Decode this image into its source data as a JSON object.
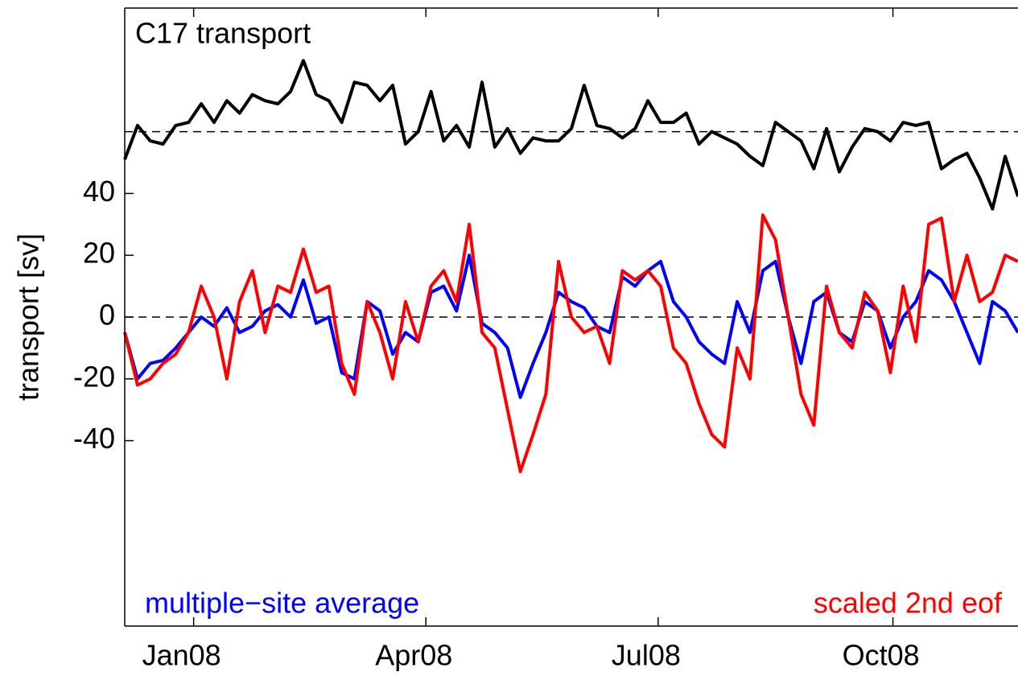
{
  "chart_data": {
    "type": "line",
    "title": "C17 transport",
    "y_label": "transport [sv]",
    "x": [
      -27,
      -22,
      -17,
      -12,
      -7,
      -2,
      3,
      8,
      13,
      18,
      23,
      28,
      33,
      38,
      43,
      48,
      53,
      58,
      63,
      68,
      73,
      78,
      83,
      88,
      93,
      98,
      103,
      108,
      113,
      118,
      123,
      128,
      133,
      138,
      143,
      148,
      153,
      158,
      163,
      168,
      173,
      178,
      183,
      188,
      193,
      198,
      203,
      208,
      213,
      218,
      223,
      228,
      233,
      238,
      243,
      248,
      253,
      258,
      263,
      268,
      273,
      278,
      283,
      288,
      293,
      298,
      303,
      308,
      313,
      318,
      323
    ],
    "xlim": [
      -27,
      323
    ],
    "xticks": [
      {
        "value": 0,
        "label": "Jan08"
      },
      {
        "value": 91,
        "label": "Apr08"
      },
      {
        "value": 182,
        "label": "Jul08"
      },
      {
        "value": 274,
        "label": "Oct08"
      }
    ],
    "ylim": [
      -100,
      100
    ],
    "yticks": [
      -40,
      -20,
      0,
      20,
      40
    ],
    "reference_lines": [
      0,
      60
    ],
    "series": [
      {
        "name": "C17 transport",
        "color": "#000000",
        "values": [
          51,
          62,
          57,
          56,
          62,
          63,
          69,
          63,
          70,
          66,
          72,
          70,
          69,
          73,
          83,
          72,
          70,
          63,
          76,
          75,
          70,
          75,
          56,
          60,
          73,
          57,
          62,
          55,
          76,
          55,
          61,
          53,
          58,
          57,
          57,
          61,
          75,
          62,
          61,
          58,
          61,
          70,
          63,
          63,
          66,
          56,
          60,
          58,
          56,
          52,
          49,
          63,
          60,
          57,
          48,
          61,
          47,
          55,
          61,
          60,
          57,
          63,
          62,
          63,
          48,
          51,
          53,
          45,
          35,
          52,
          39
        ]
      },
      {
        "name": "multiple−site average",
        "color": "#0000ff",
        "values": [
          -5,
          -20,
          -15,
          -14,
          -10,
          -5,
          0,
          -3,
          3,
          -5,
          -3,
          2,
          4,
          0,
          12,
          -2,
          0,
          -18,
          -20,
          5,
          2,
          -12,
          -5,
          -8,
          8,
          10,
          2,
          20,
          -2,
          -5,
          -10,
          -26,
          -15,
          -5,
          8,
          5,
          3,
          -3,
          -5,
          13,
          10,
          15,
          18,
          5,
          0,
          -8,
          -12,
          -15,
          5,
          -5,
          15,
          18,
          0,
          -15,
          5,
          8,
          -5,
          -8,
          5,
          2,
          -10,
          0,
          5,
          15,
          12,
          5,
          -5,
          -15,
          5,
          2,
          -5
        ]
      },
      {
        "name": "scaled 2nd eof",
        "color": "#ff0000",
        "values": [
          -5,
          -22,
          -20,
          -15,
          -12,
          -5,
          10,
          0,
          -20,
          5,
          15,
          -5,
          10,
          8,
          22,
          8,
          10,
          -15,
          -25,
          5,
          -5,
          -20,
          5,
          -8,
          10,
          15,
          5,
          30,
          -5,
          -10,
          -30,
          -50,
          -38,
          -25,
          18,
          0,
          -5,
          -3,
          -15,
          15,
          12,
          15,
          10,
          -10,
          -15,
          -28,
          -38,
          -42,
          -10,
          -20,
          33,
          25,
          0,
          -25,
          -35,
          10,
          -5,
          -10,
          8,
          2,
          -18,
          10,
          -8,
          30,
          32,
          5,
          20,
          5,
          8,
          20,
          18
        ]
      }
    ]
  }
}
